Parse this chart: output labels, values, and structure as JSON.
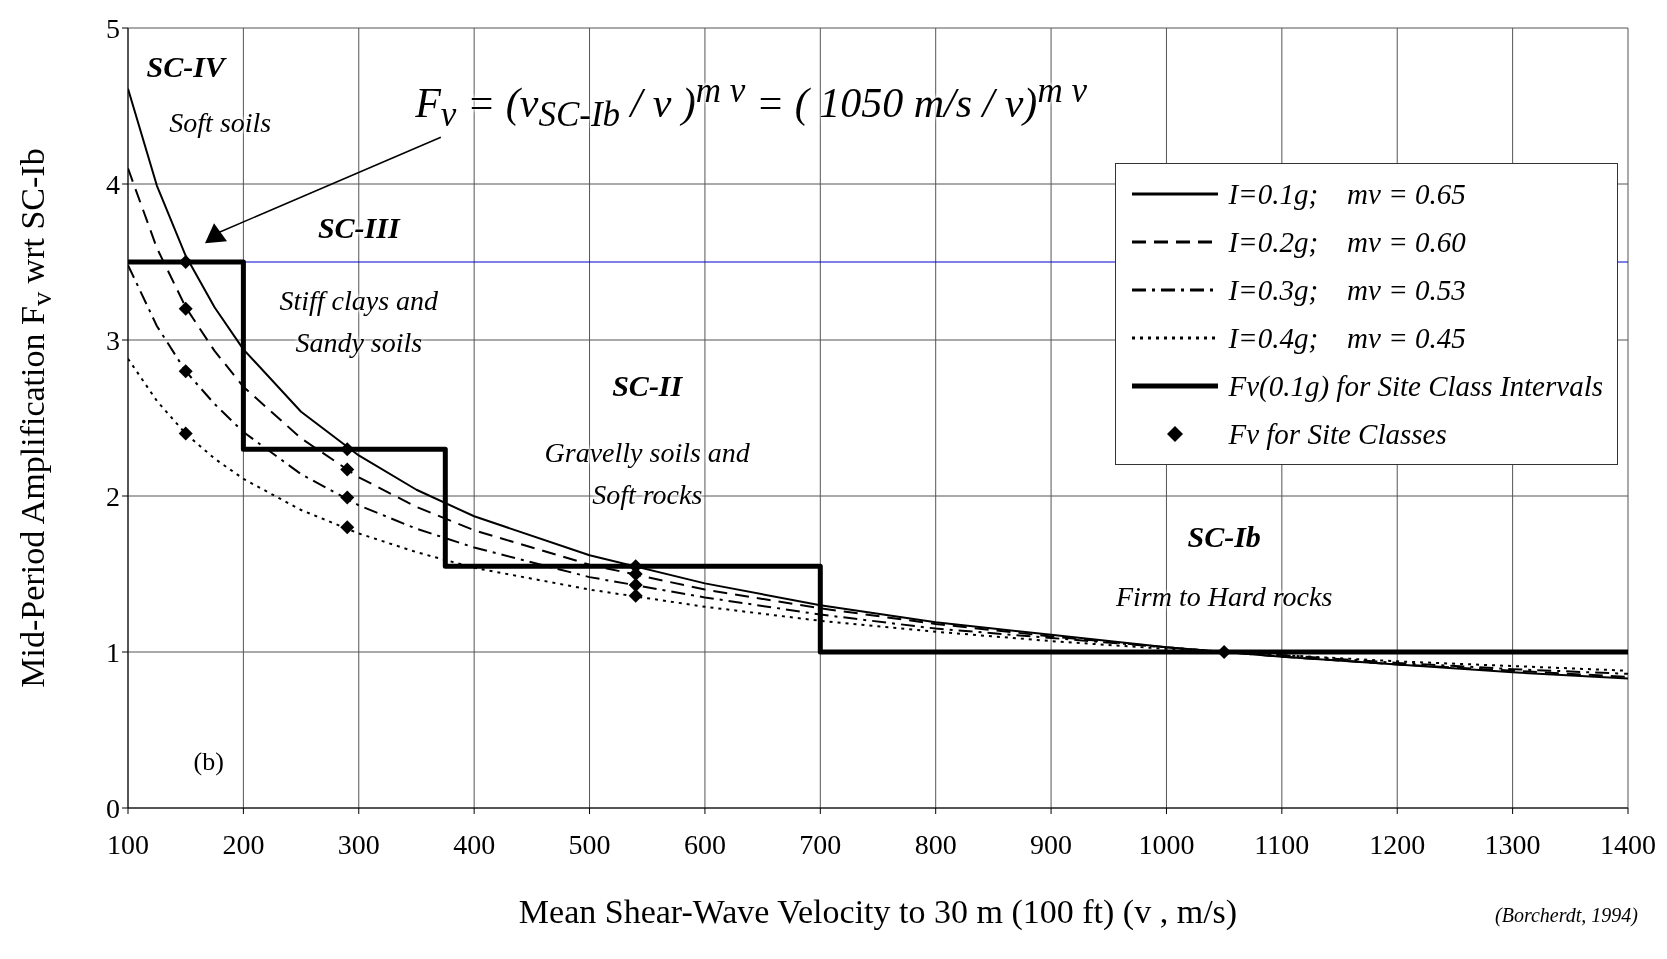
{
  "chart_data": {
    "type": "line",
    "xlabel": "Mean Shear-Wave Velocity to 30 m (100 ft) (v , m/s)",
    "ylabel": "Mid-Period Amplification F$_{v}$ wrt SC-Ib",
    "xlim": [
      100,
      1400
    ],
    "xticks": [
      100,
      200,
      300,
      400,
      500,
      600,
      700,
      800,
      900,
      1000,
      1100,
      1200,
      1300,
      1400
    ],
    "ylim": [
      0,
      5
    ],
    "yticks": [
      0,
      1,
      2,
      3,
      4,
      5
    ],
    "grid": true,
    "legend": "top right",
    "series": [
      {
        "name": "I=0.1g;    mv = 0.65",
        "color": "#000000",
        "line_style": "solid",
        "x": [
          100,
          125,
          150,
          175,
          200,
          250,
          300,
          350,
          400,
          500,
          600,
          700,
          800,
          900,
          1000,
          1050,
          1100,
          1200,
          1300,
          1400
        ],
        "values": [
          4.61,
          3.99,
          3.54,
          3.21,
          2.94,
          2.54,
          2.26,
          2.04,
          1.87,
          1.62,
          1.44,
          1.3,
          1.19,
          1.11,
          1.03,
          1,
          0.97,
          0.92,
          0.87,
          0.83
        ]
      },
      {
        "name": "I=0.2g;    mv = 0.60",
        "color": "#000000",
        "line_style": "dashed",
        "x": [
          100,
          125,
          150,
          175,
          200,
          250,
          300,
          350,
          400,
          500,
          600,
          700,
          800,
          900,
          1000,
          1050,
          1100,
          1200,
          1300,
          1400
        ],
        "values": [
          4.1,
          3.59,
          3.21,
          2.93,
          2.7,
          2.37,
          2.12,
          1.93,
          1.78,
          1.56,
          1.4,
          1.28,
          1.18,
          1.1,
          1.03,
          1,
          0.97,
          0.92,
          0.88,
          0.84
        ]
      },
      {
        "name": "I=0.3g;    mv = 0.53",
        "color": "#000000",
        "line_style": "dashdot",
        "x": [
          100,
          125,
          150,
          175,
          200,
          250,
          300,
          350,
          400,
          500,
          600,
          700,
          800,
          900,
          1000,
          1050,
          1100,
          1200,
          1300,
          1400
        ],
        "values": [
          3.48,
          3.09,
          2.8,
          2.59,
          2.41,
          2.14,
          1.94,
          1.79,
          1.67,
          1.48,
          1.35,
          1.24,
          1.15,
          1.09,
          1.03,
          1,
          0.98,
          0.93,
          0.89,
          0.86
        ]
      },
      {
        "name": "I=0.4g;    mv = 0.45",
        "color": "#000000",
        "line_style": "dotted",
        "x": [
          100,
          125,
          150,
          175,
          200,
          250,
          300,
          350,
          400,
          500,
          600,
          700,
          800,
          900,
          1000,
          1050,
          1100,
          1200,
          1300,
          1400
        ],
        "values": [
          2.88,
          2.61,
          2.4,
          2.24,
          2.11,
          1.91,
          1.76,
          1.64,
          1.54,
          1.4,
          1.29,
          1.2,
          1.13,
          1.07,
          1.02,
          1,
          0.98,
          0.94,
          0.91,
          0.88
        ]
      },
      {
        "name": "Fv(0.1g) for Site Class Intervals",
        "color": "#000000",
        "type": "step",
        "line_style": "solid",
        "x": [
          100,
          200,
          375,
          700,
          1400
        ],
        "values": [
          3.5,
          2.3,
          1.55,
          1,
          1
        ]
      },
      {
        "name": "Fv for Site Classes",
        "color": "#000000",
        "type": "scatter",
        "marker": "diamond",
        "x": [
          150,
          150,
          150,
          150,
          290,
          290,
          290,
          290,
          540,
          540,
          540,
          540,
          1050
        ],
        "values": [
          3.5,
          3.2,
          2.8,
          2.4,
          2.3,
          2.17,
          1.99,
          1.8,
          1.55,
          1.5,
          1.43,
          1.36,
          1
        ]
      }
    ],
    "ref_lines": [
      {
        "axis": "y",
        "value": 3.5,
        "label": null,
        "color": "#0000cc"
      }
    ],
    "annotations": [
      "SC-IV",
      "Soft soils",
      "SC-III",
      "Stiff clays and Sandy soils",
      "SC-II",
      "Gravelly soils and Soft rocks",
      "SC-Ib",
      "Firm to Hard rocks",
      "F$_{v}$ = (v$_{SC-Ib}$ / v )$^{m v}$ = ( 1050 m/s / v)$^{m v}$",
      "(b)",
      "(Borcherdt, 1994)"
    ]
  }
}
